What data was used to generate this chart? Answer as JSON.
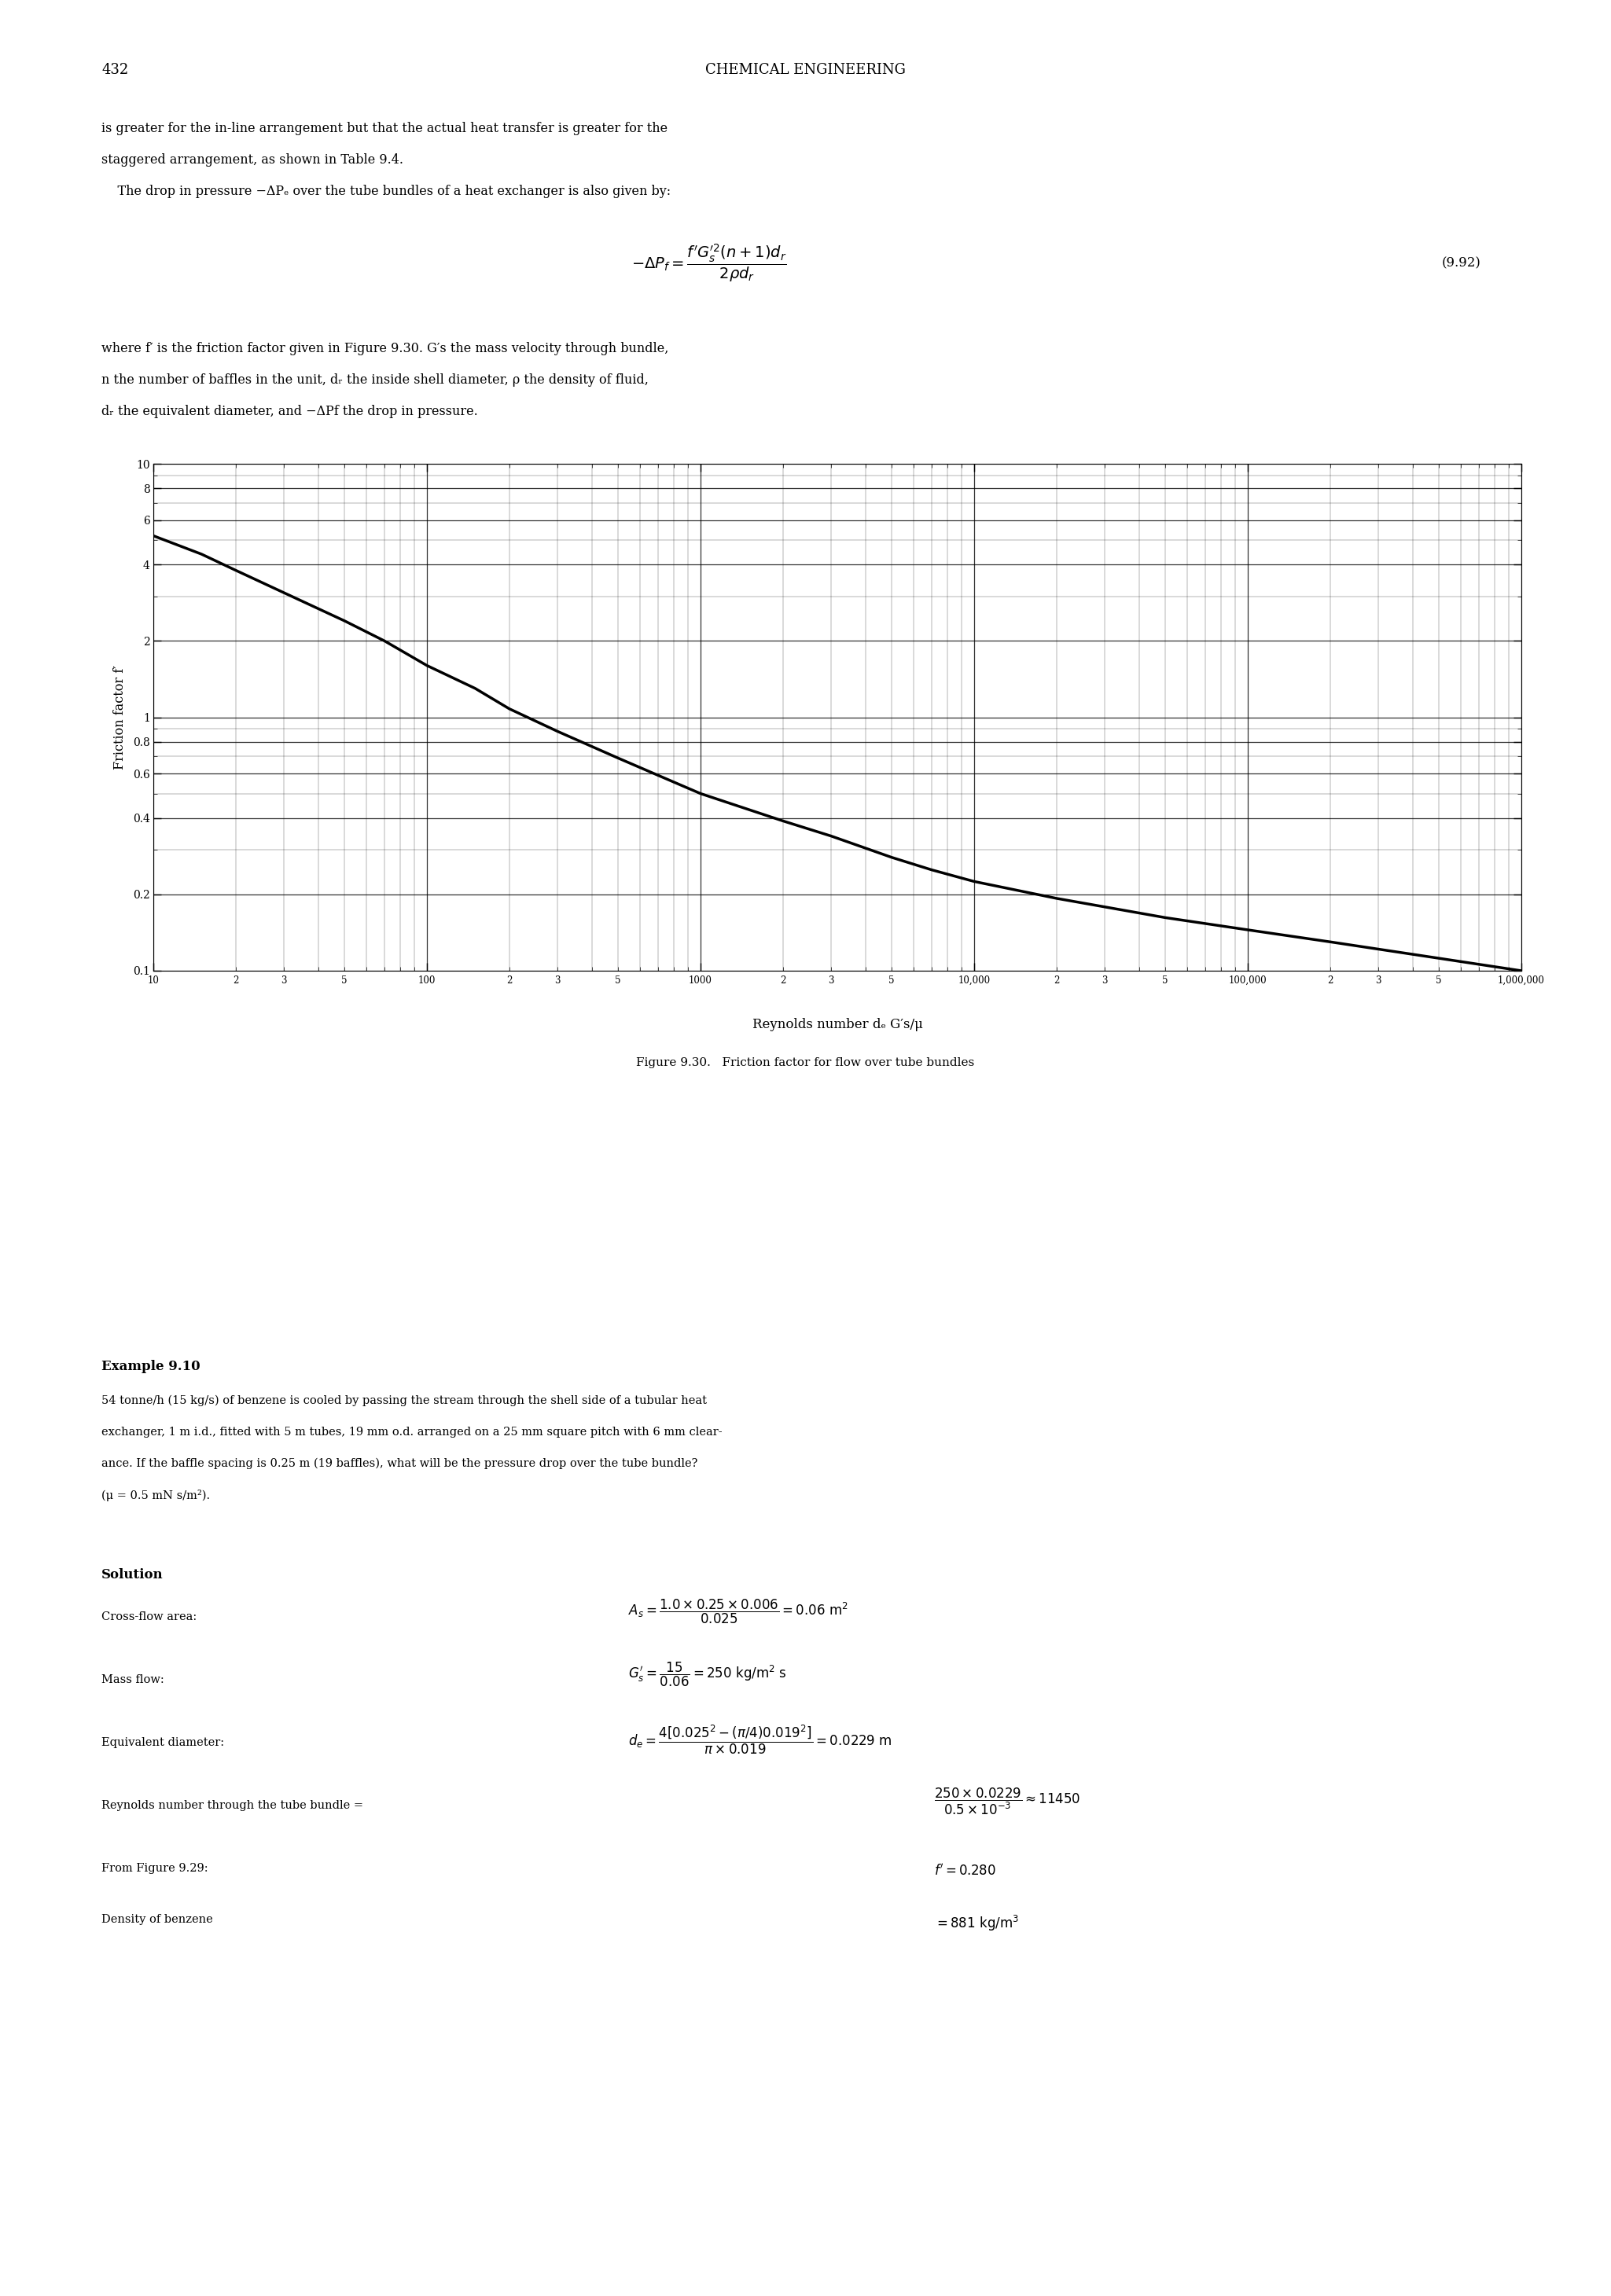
{
  "page_number": "432",
  "header_title": "CHEMICAL ENGINEERING",
  "intro_text_line1": "is greater for the in-line arrangement but that the actual heat transfer is greater for the",
  "intro_text_line2": "staggered arrangement, as shown in Table 9.4.",
  "intro_text_line3": "    The drop in pressure −ΔPₑ over the tube bundles of a heat exchanger is also given by:",
  "equation_number": "(9.92)",
  "where_text_line1": "where f′ is the friction factor given in Figure 9.30. G′s the mass velocity through bundle,",
  "where_text_line2": "n the number of baffles in the unit, dᵣ the inside shell diameter, ρ the density of fluid,",
  "where_text_line3": "dᵣ the equivalent diameter, and −ΔPf the drop in pressure.",
  "figure_caption": "Figure 9.30.   Friction factor for flow over tube bundles",
  "xlabel": "Reynolds number dₑ G′s/μ",
  "ylabel": "Friction factor f′",
  "xmin": 10,
  "xmax": 1000000,
  "ymin": 0.1,
  "ymax": 10,
  "curve_x": [
    10,
    15,
    20,
    30,
    50,
    70,
    100,
    150,
    200,
    300,
    500,
    700,
    1000,
    2000,
    3000,
    5000,
    7000,
    10000,
    20000,
    50000,
    100000,
    200000,
    500000,
    1000000
  ],
  "curve_y": [
    5.2,
    4.4,
    3.8,
    3.1,
    2.4,
    2.0,
    1.6,
    1.3,
    1.08,
    0.88,
    0.69,
    0.59,
    0.5,
    0.39,
    0.34,
    0.28,
    0.25,
    0.225,
    0.193,
    0.162,
    0.145,
    0.13,
    0.112,
    0.1
  ],
  "curve_linewidth": 2.5,
  "curve_color": "#000000",
  "background_color": "#ffffff",
  "text_color": "#000000",
  "example_title": "Example 9.10",
  "example_text_line1": "54 tonne/h (15 kg/s) of benzene is cooled by passing the stream through the shell side of a tubular heat",
  "example_text_line2": "exchanger, 1 m i.d., fitted with 5 m tubes, 19 mm o.d. arranged on a 25 mm square pitch with 6 mm clear-",
  "example_text_line3": "ance. If the baffle spacing is 0.25 m (19 baffles), what will be the pressure drop over the tube bundle?",
  "example_text_line4": "(μ = 0.5 mN s/m²).",
  "solution_title": "Solution"
}
